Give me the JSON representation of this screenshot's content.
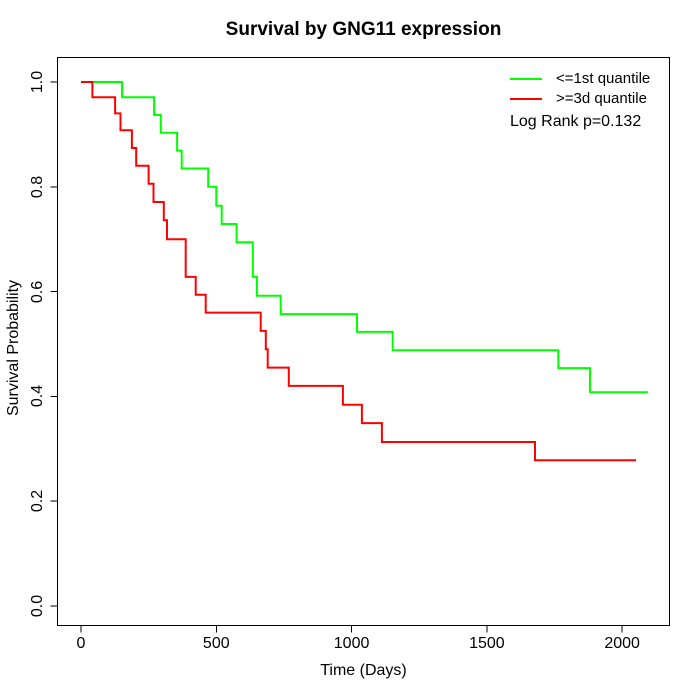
{
  "chart_data": {
    "type": "line",
    "subtype": "kaplan-meier-step",
    "title": "Survival by GNG11 expression",
    "xlabel": "Time (Days)",
    "ylabel": "Survival Probability",
    "annotation": "Log Rank p=0.132",
    "grid": false,
    "legend_position": "top-right",
    "xlim": [
      0,
      2100
    ],
    "ylim": [
      0.0,
      1.0
    ],
    "x_ticks": [
      {
        "value": 0,
        "label": "0"
      },
      {
        "value": 500,
        "label": "500"
      },
      {
        "value": 1000,
        "label": "1000"
      },
      {
        "value": 1500,
        "label": "1500"
      },
      {
        "value": 2000,
        "label": "2000"
      }
    ],
    "y_ticks": [
      {
        "value": 0.0,
        "label": "0.0"
      },
      {
        "value": 0.2,
        "label": "0.2"
      },
      {
        "value": 0.4,
        "label": "0.4"
      },
      {
        "value": 0.6,
        "label": "0.6"
      },
      {
        "value": 0.8,
        "label": "0.8"
      },
      {
        "value": 1.0,
        "label": "1.0"
      }
    ],
    "series": [
      {
        "id": "1st-quantile",
        "name": "<=1st quantile",
        "color": "#00ff00",
        "steps": [
          [
            0,
            1.0
          ],
          [
            152,
            0.971
          ],
          [
            270,
            0.937
          ],
          [
            295,
            0.903
          ],
          [
            355,
            0.869
          ],
          [
            372,
            0.835
          ],
          [
            470,
            0.8
          ],
          [
            500,
            0.764
          ],
          [
            520,
            0.729
          ],
          [
            575,
            0.694
          ],
          [
            635,
            0.628
          ],
          [
            650,
            0.592
          ],
          [
            738,
            0.557
          ],
          [
            1020,
            0.523
          ],
          [
            1152,
            0.488
          ],
          [
            1764,
            0.454
          ],
          [
            1881,
            0.408
          ],
          [
            2095,
            0.408
          ]
        ]
      },
      {
        "id": "3d-quantile",
        "name": ">=3d quantile",
        "color": "#ff0000",
        "steps": [
          [
            0,
            1.0
          ],
          [
            42,
            0.971
          ],
          [
            126,
            0.94
          ],
          [
            146,
            0.908
          ],
          [
            188,
            0.874
          ],
          [
            204,
            0.84
          ],
          [
            250,
            0.806
          ],
          [
            268,
            0.771
          ],
          [
            306,
            0.736
          ],
          [
            318,
            0.7
          ],
          [
            387,
            0.628
          ],
          [
            424,
            0.594
          ],
          [
            461,
            0.56
          ],
          [
            664,
            0.525
          ],
          [
            683,
            0.49
          ],
          [
            690,
            0.455
          ],
          [
            768,
            0.42
          ],
          [
            968,
            0.384
          ],
          [
            1038,
            0.349
          ],
          [
            1112,
            0.313
          ],
          [
            1678,
            0.278
          ],
          [
            2051,
            0.278
          ]
        ]
      }
    ],
    "colors": {
      "background": "#ffffff",
      "axis": "#000000",
      "text": "#000000"
    }
  }
}
